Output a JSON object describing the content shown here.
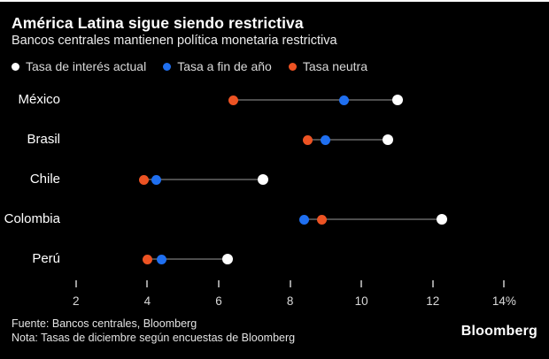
{
  "header": {
    "title": "América Latina sigue siendo restrictiva",
    "subtitle": "Bancos centrales mantienen política monetaria restrictiva"
  },
  "footer": {
    "source": "Fuente: Bancos centrales, Bloomberg",
    "note": "Nota: Tasas de diciembre según encuestas de Bloomberg",
    "brand": "Bloomberg"
  },
  "colors": {
    "background": "#000000",
    "actual": "#ffffff",
    "fin_de_ano": "#1f6ff0",
    "neutra": "#ed5323",
    "connector": "#4d4d4d",
    "tick": "#9b9b9b",
    "tick_label": "#d9d9d9"
  },
  "chart_data": {
    "type": "scatter",
    "variant": "dumbbell-dot-plot",
    "title": "América Latina sigue siendo restrictiva",
    "subtitle": "Bancos centrales mantienen política monetaria restrictiva",
    "categories": [
      "México",
      "Brasil",
      "Chile",
      "Colombia",
      "Perú"
    ],
    "series": [
      {
        "name": "Tasa de interés actual",
        "color": "#ffffff",
        "values": [
          11.0,
          10.75,
          7.25,
          12.25,
          6.25
        ]
      },
      {
        "name": "Tasa a fin de año",
        "color": "#1f6ff0",
        "values": [
          9.5,
          9.0,
          4.25,
          8.4,
          4.4
        ]
      },
      {
        "name": "Tasa neutra",
        "color": "#ed5323",
        "values": [
          6.4,
          8.5,
          3.9,
          8.9,
          4.0
        ]
      }
    ],
    "unit": "%",
    "xlim": [
      2,
      14
    ],
    "x_ticks": [
      2,
      4,
      6,
      8,
      10,
      12,
      14
    ],
    "x_tick_labels": [
      "2",
      "4",
      "6",
      "8",
      "10",
      "12",
      "14%"
    ],
    "grid": false,
    "legend_position": "top",
    "xlabel": "",
    "ylabel": ""
  }
}
